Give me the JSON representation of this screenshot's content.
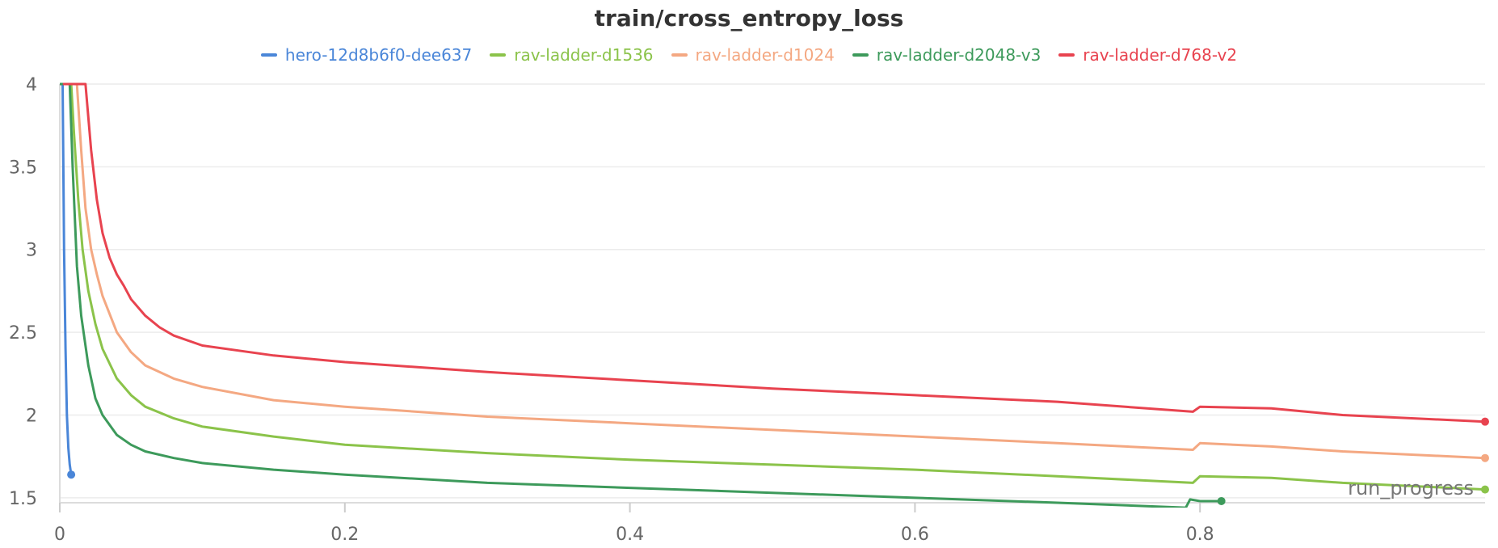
{
  "chart_data": {
    "type": "line",
    "title": "train/cross_entropy_loss",
    "xlabel": "run_progress",
    "ylabel": "",
    "xlim": [
      0,
      1
    ],
    "ylim": [
      1.47,
      4.0
    ],
    "grid": true,
    "legend_position": "top-center",
    "x_ticks": [
      "0",
      "0.2",
      "0.4",
      "0.6",
      "0.8"
    ],
    "x_tick_values": [
      0,
      0.2,
      0.4,
      0.6,
      0.8
    ],
    "y_ticks": [
      "1.5",
      "2",
      "2.5",
      "3",
      "3.5",
      "4"
    ],
    "y_tick_values": [
      1.5,
      2,
      2.5,
      3,
      3.5,
      4
    ],
    "series": [
      {
        "name": "hero-12d8b6f0-dee637",
        "color": "#4a86d8",
        "x": [
          0.002,
          0.003,
          0.004,
          0.005,
          0.006,
          0.007,
          0.008
        ],
        "y": [
          4.0,
          3.0,
          2.4,
          2.0,
          1.8,
          1.7,
          1.64
        ]
      },
      {
        "name": "rav-ladder-d1536",
        "color": "#8bc34a",
        "x": [
          0.008,
          0.01,
          0.013,
          0.016,
          0.02,
          0.025,
          0.03,
          0.04,
          0.05,
          0.06,
          0.08,
          0.1,
          0.15,
          0.2,
          0.3,
          0.4,
          0.5,
          0.6,
          0.7,
          0.795,
          0.8,
          0.85,
          0.9,
          0.95,
          1.0
        ],
        "y": [
          4.0,
          3.7,
          3.3,
          3.0,
          2.75,
          2.55,
          2.4,
          2.22,
          2.12,
          2.05,
          1.98,
          1.93,
          1.87,
          1.82,
          1.77,
          1.73,
          1.7,
          1.67,
          1.63,
          1.59,
          1.63,
          1.62,
          1.59,
          1.57,
          1.55
        ]
      },
      {
        "name": "rav-ladder-d1024",
        "color": "#f4a882",
        "x": [
          0.012,
          0.015,
          0.018,
          0.022,
          0.026,
          0.03,
          0.04,
          0.05,
          0.06,
          0.08,
          0.1,
          0.15,
          0.2,
          0.3,
          0.4,
          0.5,
          0.6,
          0.7,
          0.795,
          0.8,
          0.85,
          0.9,
          0.95,
          1.0
        ],
        "y": [
          4.0,
          3.6,
          3.25,
          3.0,
          2.85,
          2.72,
          2.5,
          2.38,
          2.3,
          2.22,
          2.17,
          2.09,
          2.05,
          1.99,
          1.95,
          1.91,
          1.87,
          1.83,
          1.79,
          1.83,
          1.81,
          1.78,
          1.76,
          1.74
        ]
      },
      {
        "name": "rav-ladder-d2048-v3",
        "color": "#3d9a5b",
        "x": [
          0.007,
          0.009,
          0.012,
          0.015,
          0.02,
          0.025,
          0.03,
          0.04,
          0.05,
          0.06,
          0.08,
          0.1,
          0.15,
          0.2,
          0.3,
          0.4,
          0.5,
          0.6,
          0.7,
          0.79,
          0.793,
          0.8,
          0.815
        ],
        "y": [
          4.0,
          3.5,
          2.9,
          2.6,
          2.3,
          2.1,
          2.0,
          1.88,
          1.82,
          1.78,
          1.74,
          1.71,
          1.67,
          1.64,
          1.59,
          1.56,
          1.53,
          1.5,
          1.47,
          1.44,
          1.49,
          1.48,
          1.48
        ]
      },
      {
        "name": "rav-ladder-d768-v2",
        "color": "#e8434f",
        "x": [
          0.018,
          0.022,
          0.026,
          0.03,
          0.035,
          0.04,
          0.045,
          0.05,
          0.06,
          0.07,
          0.08,
          0.1,
          0.15,
          0.2,
          0.3,
          0.4,
          0.5,
          0.6,
          0.7,
          0.795,
          0.8,
          0.85,
          0.9,
          0.95,
          1.0
        ],
        "y": [
          4.0,
          3.6,
          3.3,
          3.1,
          2.95,
          2.85,
          2.78,
          2.7,
          2.6,
          2.53,
          2.48,
          2.42,
          2.36,
          2.32,
          2.26,
          2.21,
          2.16,
          2.12,
          2.08,
          2.02,
          2.05,
          2.04,
          2.0,
          1.98,
          1.96
        ]
      }
    ]
  }
}
